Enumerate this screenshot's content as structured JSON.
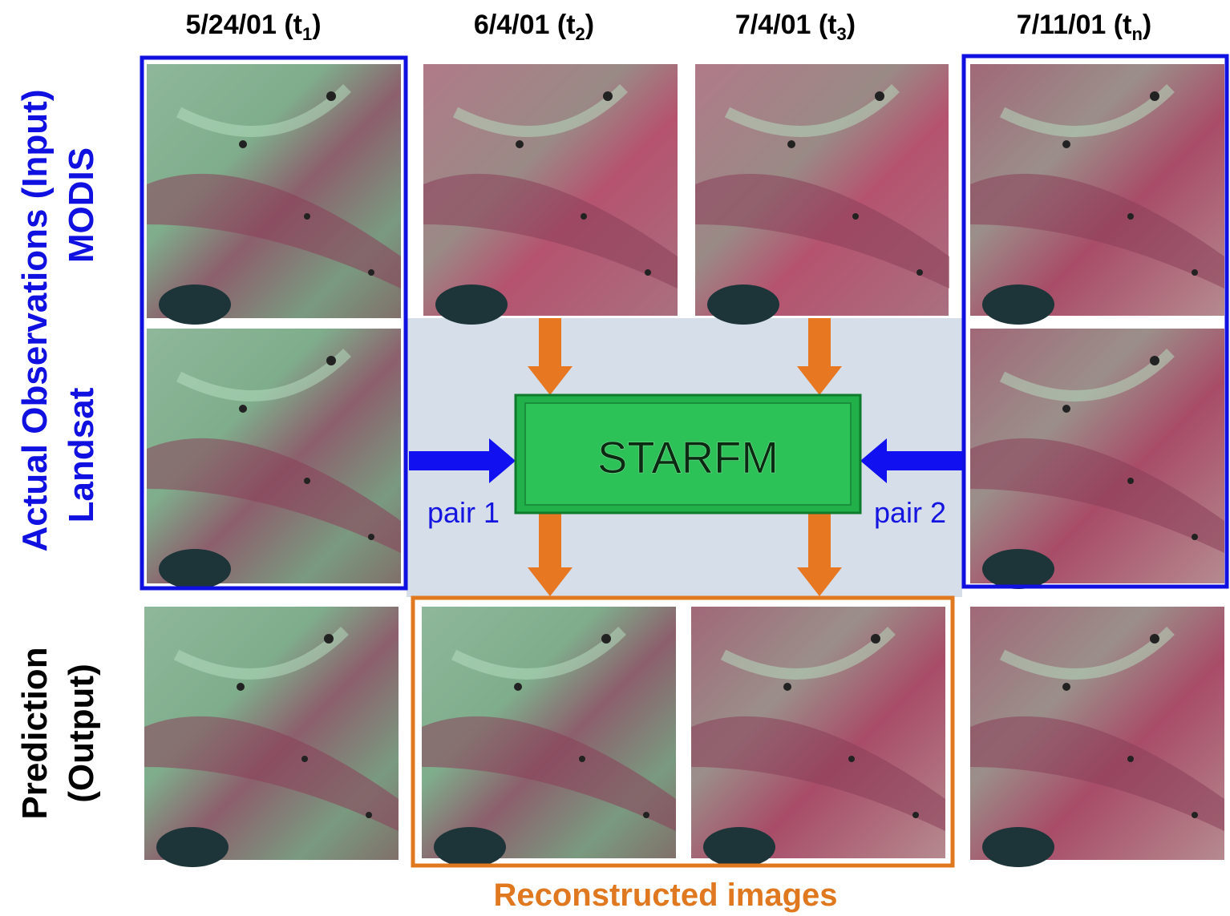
{
  "columns": [
    {
      "label": "5/24/01 (t",
      "subscript": "1",
      "close": ")"
    },
    {
      "label": "6/4/01 (t",
      "subscript": "2",
      "close": ")"
    },
    {
      "label": "7/4/01 (t",
      "subscript": "3",
      "close": ")"
    },
    {
      "label": "7/11/01 (t",
      "subscript": "n",
      "close": ")"
    }
  ],
  "rows": {
    "input_group": "Actual Observations (Input)",
    "modis": "MODIS",
    "landsat": "Landsat",
    "prediction": "Prediction",
    "output": "(Output)"
  },
  "model": "STARFM",
  "pairs": [
    "pair 1",
    "pair 2"
  ],
  "reconstructed": "Reconstructed images"
}
